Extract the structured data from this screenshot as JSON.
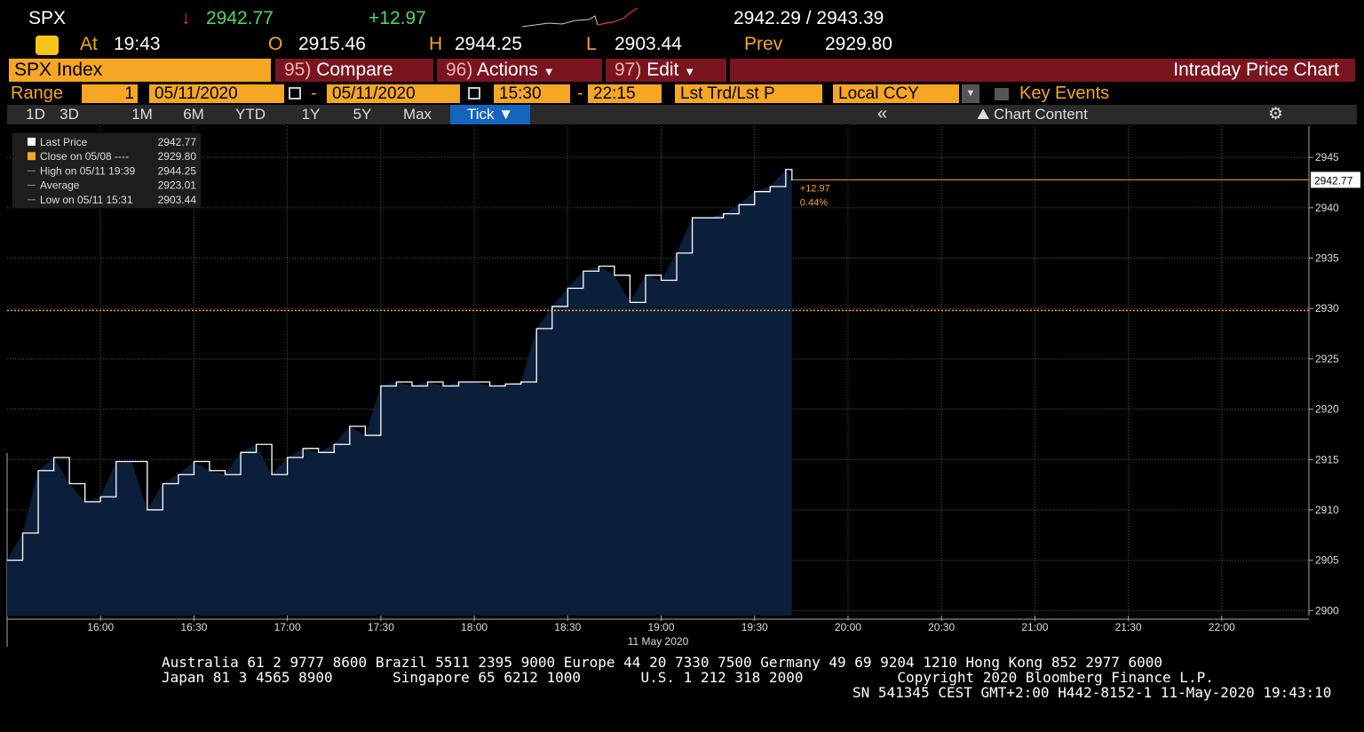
{
  "header": {
    "ticker": "SPX",
    "last": "2942.77",
    "change": "+12.97",
    "bid_ask": "2942.29 / 2943.39",
    "at_label": "At",
    "time": "19:43",
    "open_label": "O",
    "open": "2915.46",
    "high_label": "H",
    "high": "2944.25",
    "low_label": "L",
    "low": "2903.44",
    "prev_label": "Prev",
    "prev": "2929.80"
  },
  "toolbar": {
    "security": "SPX Index",
    "buttons": [
      {
        "number": "95)",
        "label": "Compare"
      },
      {
        "number": "96)",
        "label": "Actions"
      },
      {
        "number": "97)",
        "label": "Edit"
      }
    ],
    "title": "Intraday Price Chart"
  },
  "range_bar": {
    "label": "Range",
    "period": "1",
    "start_date": "05/11/2020",
    "dash": "-",
    "end_date": "05/11/2020",
    "start_time": "15:30",
    "end_time": "22:15",
    "price_type": "Lst Trd/Lst P",
    "currency": "Local CCY",
    "key_events": "Key Events"
  },
  "tabs": [
    "1D",
    "3D",
    "1M",
    "6M",
    "YTD",
    "1Y",
    "5Y",
    "Max",
    "Tick"
  ],
  "chart_content": "Chart Content",
  "footer": [
    "Australia 61 2 9777 8600 Brazil 5511 2395 9000 Europe 44 20 7330 7500 Germany 49 69 9204 1210 Hong Kong 852 2977 6000",
    "Japan 81 3 4565 8900       Singapore 65 6212 1000       U.S. 1 212 318 2000           Copyright 2020 Bloomberg Finance L.P.",
    "SN 541345 CEST GMT+2:00 H442-8152-1 11-May-2020 19:43:10"
  ],
  "chart_data": {
    "type": "area",
    "x_label": "11 May 2020",
    "x": [
      930,
      935,
      940,
      945,
      950,
      955,
      960,
      965,
      970,
      975,
      980,
      985,
      990,
      995,
      1000,
      1005,
      1010,
      1015,
      1020,
      1025,
      1030,
      1035,
      1040,
      1045,
      1050,
      1055,
      1060,
      1065,
      1070,
      1075,
      1080,
      1085,
      1090,
      1095,
      1100,
      1105,
      1110,
      1115,
      1120,
      1125,
      1130,
      1135,
      1140,
      1145,
      1150,
      1155,
      1160,
      1165,
      1170,
      1175,
      1180,
      1182
    ],
    "series": [
      {
        "name": "Last Price",
        "color": "#ffffff",
        "fill": "#0b1f3a",
        "values": [
          2905.0,
          2907.7,
          2913.9,
          2915.2,
          2912.6,
          2910.8,
          2911.3,
          2914.8,
          2914.8,
          2910.0,
          2912.6,
          2913.5,
          2914.8,
          2913.9,
          2913.5,
          2915.7,
          2916.5,
          2913.5,
          2915.2,
          2916.1,
          2915.7,
          2916.5,
          2918.3,
          2917.4,
          2922.3,
          2922.7,
          2922.3,
          2922.7,
          2922.3,
          2922.7,
          2922.7,
          2922.3,
          2922.5,
          2922.7,
          2928.0,
          2930.2,
          2932.0,
          2933.7,
          2934.2,
          2933.3,
          2930.6,
          2933.3,
          2932.8,
          2935.5,
          2939.0,
          2939.0,
          2939.4,
          2940.3,
          2941.6,
          2942.1,
          2943.8,
          2942.7
        ]
      }
    ],
    "legend": [
      {
        "name": "Last Price",
        "value": {
          "value": 2942.77,
          "label": "2942.77"
        }
      },
      {
        "name": "Close on 05/08 ----",
        "value": {
          "value": 2929.8,
          "label": "2929.80"
        }
      },
      {
        "name": "High on 05/11 19:39",
        "value": {
          "value": 2944.25,
          "label": "2944.25"
        }
      },
      {
        "name": "Average",
        "value": {
          "value": 2923.01,
          "label": "2923.01"
        }
      },
      {
        "name": "Low on 05/11 15:31",
        "value": {
          "value": 2903.44,
          "label": "2903.44"
        }
      }
    ],
    "annotations": [
      "+12.97",
      "0.44%"
    ],
    "xlim": [
      930,
      1348
    ],
    "xticks": [
      {
        "value": 960,
        "label": "16:00"
      },
      {
        "value": 990,
        "label": "16:30"
      },
      {
        "value": 1020,
        "label": "17:00"
      },
      {
        "value": 1050,
        "label": "17:30"
      },
      {
        "value": 1080,
        "label": "18:00"
      },
      {
        "value": 1110,
        "label": "18:30"
      },
      {
        "value": 1140,
        "label": "19:00"
      },
      {
        "value": 1170,
        "label": "19:30"
      },
      {
        "value": 1200,
        "label": "20:00"
      },
      {
        "value": 1230,
        "label": "20:30"
      },
      {
        "value": 1260,
        "label": "21:00"
      },
      {
        "value": 1290,
        "label": "21:30"
      },
      {
        "value": 1320,
        "label": "22:00"
      }
    ],
    "ylim": [
      2899.5,
      2948.1
    ],
    "yticks": [
      2900,
      2905,
      2910,
      2915,
      2920,
      2925,
      2930,
      2935,
      2940,
      2945
    ],
    "grid": true
  }
}
